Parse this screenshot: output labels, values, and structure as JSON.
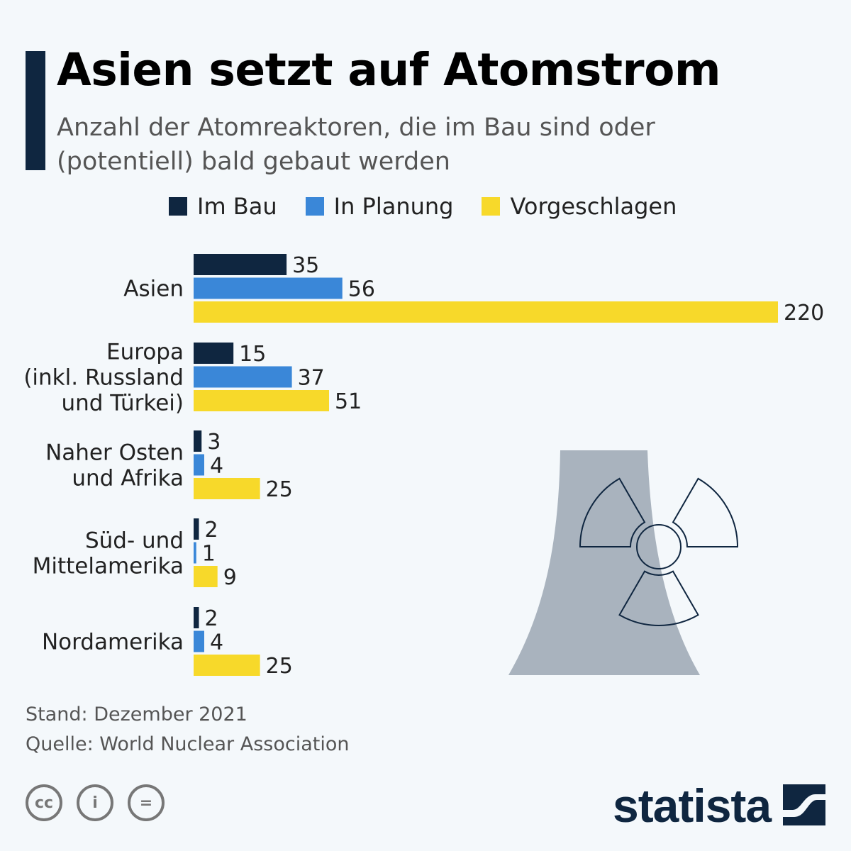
{
  "header": {
    "title": "Asien setzt auf Atomstrom",
    "subtitle": "Anzahl der Atomreaktoren, die im Bau sind oder (potentiell) bald gebaut werden"
  },
  "chart_data": {
    "type": "bar",
    "orientation": "horizontal",
    "categories": [
      [
        "Asien"
      ],
      [
        "Europa",
        "(inkl. Russland",
        "und Türkei)"
      ],
      [
        "Naher Osten",
        "und Afrika"
      ],
      [
        "Süd- und",
        "Mittelamerika"
      ],
      [
        "Nordamerika"
      ]
    ],
    "series": [
      {
        "name": "Im Bau",
        "color": "#0f2640",
        "values": [
          35,
          15,
          3,
          2,
          2
        ]
      },
      {
        "name": "In Planung",
        "color": "#3a87d8",
        "values": [
          56,
          37,
          4,
          1,
          4
        ]
      },
      {
        "name": "Vorgeschlagen",
        "color": "#f7d92a",
        "values": [
          220,
          51,
          25,
          9,
          25
        ]
      }
    ],
    "xlim": [
      0,
      220
    ],
    "grid": false,
    "legend": "top"
  },
  "footer": {
    "date": "Stand: Dezember 2021",
    "source": "Quelle: World Nuclear Association",
    "cc": "cc",
    "by": "i",
    "nd": "="
  },
  "branding": {
    "logo": "statista"
  },
  "decoration": {
    "icon": "cooling-tower-radiation-icon",
    "tower_color": "#a9b3be"
  }
}
